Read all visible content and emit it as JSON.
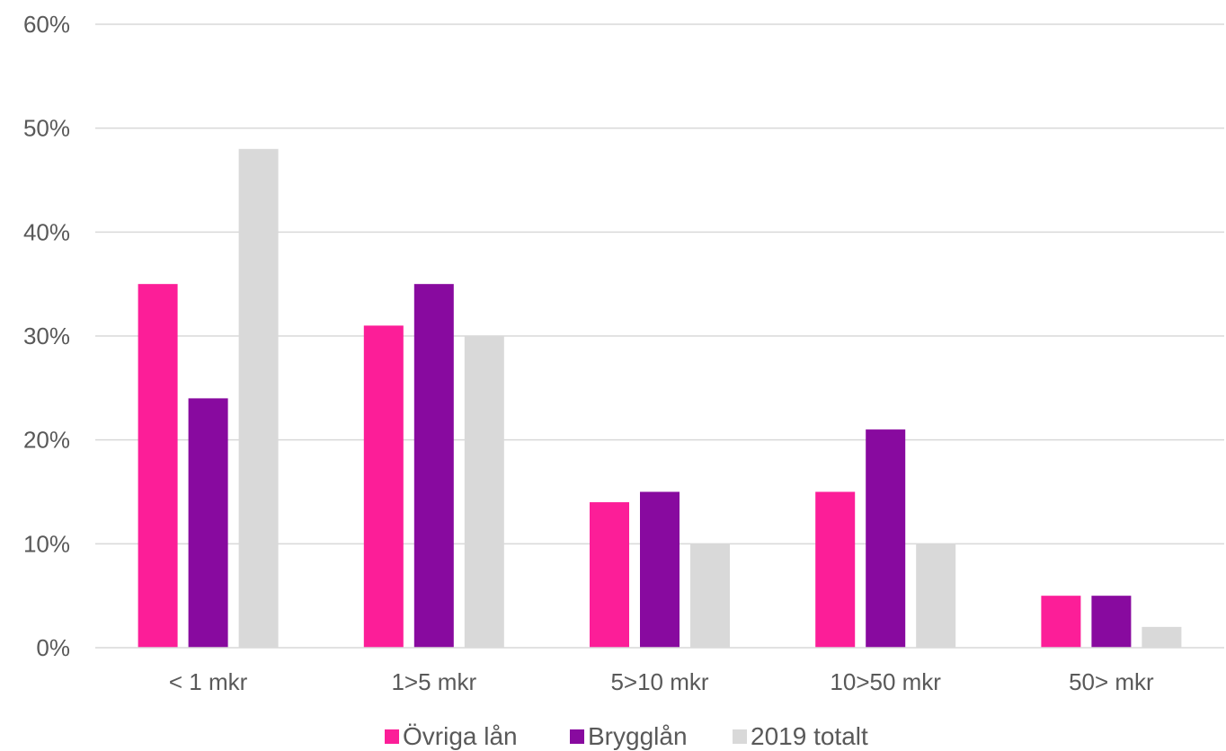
{
  "chart_data": {
    "type": "bar",
    "categories": [
      "< 1 mkr",
      "1>5 mkr",
      "5>10 mkr",
      "10>50 mkr",
      "50> mkr"
    ],
    "series": [
      {
        "name": "Övriga lån",
        "color": "#fc1e98",
        "values": [
          35,
          31,
          14,
          15,
          5
        ]
      },
      {
        "name": "Brygglån",
        "color": "#880a9f",
        "values": [
          24,
          35,
          15,
          21,
          5
        ]
      },
      {
        "name": "2019 totalt",
        "color": "#d9d9d9",
        "values": [
          48,
          30,
          10,
          10,
          2
        ]
      }
    ],
    "ylim": [
      0,
      60
    ],
    "yticks": [
      "0%",
      "10%",
      "20%",
      "30%",
      "40%",
      "50%",
      "60%"
    ],
    "ytick_values": [
      0,
      10,
      20,
      30,
      40,
      50,
      60
    ],
    "grid": true,
    "legend_position": "bottom",
    "title": "",
    "xlabel": "",
    "ylabel": ""
  }
}
